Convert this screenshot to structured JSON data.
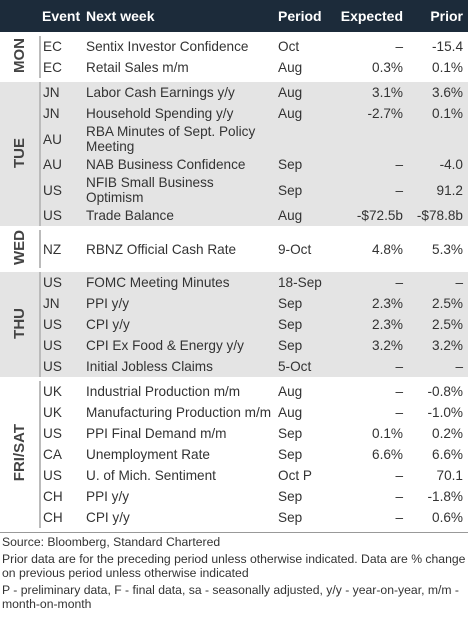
{
  "header": {
    "event": "Event",
    "next_week": "Next week",
    "period": "Period",
    "expected": "Expected",
    "prior": "Prior"
  },
  "groups": [
    {
      "day": "MON",
      "rows": [
        {
          "country": "EC",
          "event": "Sentix Investor Confidence",
          "period": "Oct",
          "expected": "–",
          "prior": "-15.4"
        },
        {
          "country": "EC",
          "event": "Retail Sales m/m",
          "period": "Aug",
          "expected": "0.3%",
          "prior": "0.1%"
        }
      ]
    },
    {
      "day": "TUE",
      "rows": [
        {
          "country": "JN",
          "event": "Labor Cash Earnings y/y",
          "period": "Aug",
          "expected": "3.1%",
          "prior": "3.6%"
        },
        {
          "country": "JN",
          "event": "Household Spending y/y",
          "period": "Aug",
          "expected": "-2.7%",
          "prior": "0.1%"
        },
        {
          "country": "AU",
          "event": "RBA Minutes of Sept. Policy Meeting"
        },
        {
          "country": "AU",
          "event": "NAB Business Confidence",
          "period": "Sep",
          "expected": "–",
          "prior": "-4.0"
        },
        {
          "country": "US",
          "event": "NFIB Small Business Optimism",
          "period": "Sep",
          "expected": "–",
          "prior": "91.2"
        },
        {
          "country": "US",
          "event": "Trade Balance",
          "period": "Aug",
          "expected": "-$72.5b",
          "prior": "-$78.8b"
        }
      ]
    },
    {
      "day": "WED",
      "rows": [
        {
          "country": "NZ",
          "event": "RBNZ Official Cash Rate",
          "period": "9-Oct",
          "expected": "4.8%",
          "prior": "5.3%"
        }
      ]
    },
    {
      "day": "THU",
      "rows": [
        {
          "country": "US",
          "event": "FOMC Meeting Minutes",
          "period": "18-Sep",
          "expected": "–",
          "prior": "–"
        },
        {
          "country": "JN",
          "event": "PPI y/y",
          "period": "Sep",
          "expected": "2.3%",
          "prior": "2.5%"
        },
        {
          "country": "US",
          "event": "CPI y/y",
          "period": "Sep",
          "expected": "2.3%",
          "prior": "2.5%"
        },
        {
          "country": "US",
          "event": "CPI Ex Food & Energy y/y",
          "period": "Sep",
          "expected": "3.2%",
          "prior": "3.2%"
        },
        {
          "country": "US",
          "event": "Initial Jobless Claims",
          "period": "5-Oct",
          "expected": "–",
          "prior": "–"
        }
      ]
    },
    {
      "day": "FRI/SAT",
      "rows": [
        {
          "country": "UK",
          "event": "Industrial Production m/m",
          "period": "Aug",
          "expected": "–",
          "prior": "-0.8%"
        },
        {
          "country": "UK",
          "event": "Manufacturing Production m/m",
          "period": "Aug",
          "expected": "–",
          "prior": "-1.0%"
        },
        {
          "country": "US",
          "event": "PPI Final Demand m/m",
          "period": "Sep",
          "expected": "0.1%",
          "prior": "0.2%"
        },
        {
          "country": "CA",
          "event": "Unemployment Rate",
          "period": "Sep",
          "expected": "6.6%",
          "prior": "6.6%"
        },
        {
          "country": "US",
          "event": "U. of Mich. Sentiment",
          "period": "Oct P",
          "expected": "–",
          "prior": "70.1"
        },
        {
          "country": "CH",
          "event": "PPI y/y",
          "period": "Sep",
          "expected": "–",
          "prior": "-1.8%"
        },
        {
          "country": "CH",
          "event": "CPI y/y",
          "period": "Sep",
          "expected": "–",
          "prior": "0.6%"
        }
      ]
    }
  ],
  "footer": {
    "source": "Source: Bloomberg, Standard Chartered",
    "notes": [
      "Prior data are for the preceding period unless otherwise indicated. Data are % change on previous period unless otherwise indicated",
      "P - preliminary data, F - final data, sa - seasonally adjusted, y/y - year-on-year, m/m - month-on-month"
    ]
  }
}
